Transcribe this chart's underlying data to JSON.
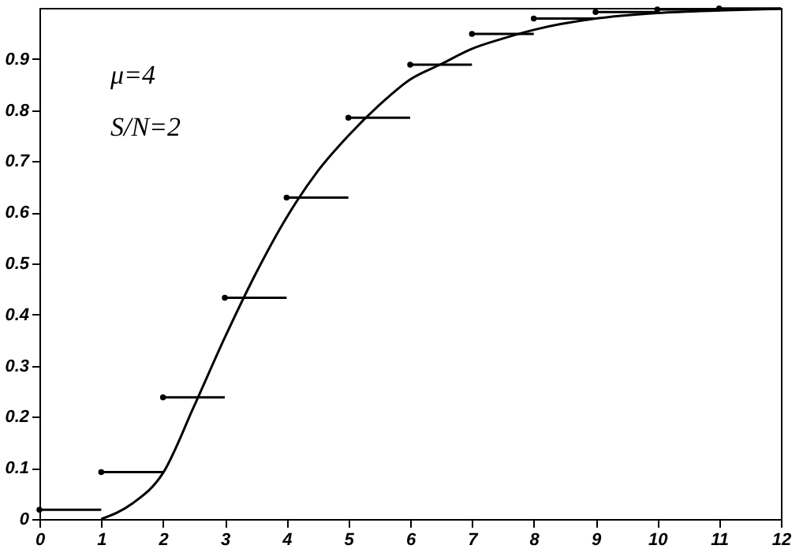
{
  "chart_data": {
    "type": "line",
    "annotations": [
      "μ=4",
      "S/N=2"
    ],
    "xlim": [
      0,
      12
    ],
    "ylim": [
      0,
      1
    ],
    "xticks": [
      0,
      1,
      2,
      3,
      4,
      5,
      6,
      7,
      8,
      9,
      10,
      11,
      12
    ],
    "yticks": [
      0,
      0.1,
      0.2,
      0.3,
      0.4,
      0.5,
      0.6,
      0.7,
      0.8,
      0.9
    ],
    "grid": false,
    "series": [
      {
        "type": "scatter",
        "marker": "circle",
        "color": "#000000",
        "x": [
          0,
          1,
          2,
          3,
          4,
          5,
          6,
          7,
          8,
          9,
          10,
          11
        ],
        "values": [
          0.018,
          0.092,
          0.238,
          0.433,
          0.629,
          0.785,
          0.889,
          0.949,
          0.979,
          0.992,
          0.997,
          0.999
        ],
        "xerrors": [
          [
            0,
            1
          ],
          [
            1,
            2
          ],
          [
            2,
            3
          ],
          [
            3,
            4
          ],
          [
            4,
            5
          ],
          [
            5,
            6
          ],
          [
            6,
            7
          ],
          [
            7,
            8
          ],
          [
            8,
            9
          ],
          [
            9,
            10
          ],
          [
            10,
            11
          ],
          [
            11,
            12
          ]
        ]
      },
      {
        "marker": "none",
        "color": "#000000",
        "x": [
          1,
          1.5,
          2,
          2.5,
          3,
          3.5,
          4,
          4.5,
          5,
          5.5,
          6,
          6.5,
          7,
          7.5,
          8,
          9,
          10,
          11,
          12
        ],
        "values": [
          0,
          0.03,
          0.09,
          0.22,
          0.355,
          0.48,
          0.59,
          0.68,
          0.75,
          0.81,
          0.86,
          0.89,
          0.92,
          0.94,
          0.957,
          0.979,
          0.99,
          0.995,
          0.998
        ]
      }
    ]
  }
}
